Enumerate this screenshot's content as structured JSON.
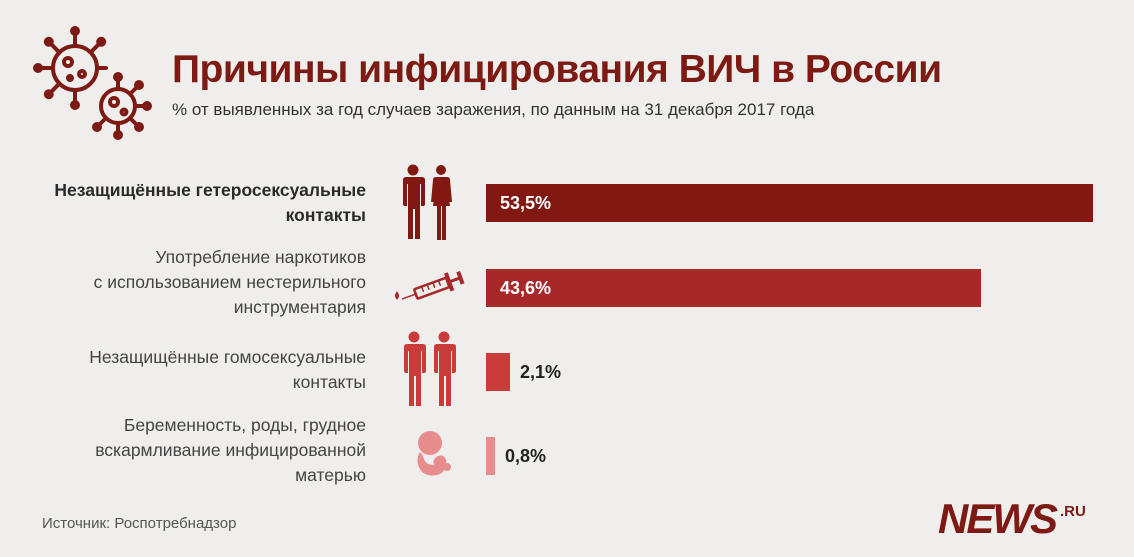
{
  "header": {
    "title": "Причины инфицирования ВИЧ в России",
    "subtitle": "% от выявленных за год случаев заражения, по данным на 31 декабря 2017 года",
    "icon": "virus-icon"
  },
  "chart_data": {
    "type": "bar",
    "orientation": "horizontal",
    "title": "Причины инфицирования ВИЧ в России",
    "subtitle": "% от выявленных за год случаев заражения, по данным на 31 декабря 2017 года",
    "categories": [
      "Незащищённые гетеросексуальные контакты",
      "Употребление наркотиков с использованием нестерильного инструментария",
      "Незащищённые гомосексуальные контакты",
      "Беременность, роды, грудное вскармливание инфицированной матерью"
    ],
    "values": [
      53.5,
      43.6,
      2.1,
      0.8
    ],
    "value_labels": [
      "53,5%",
      "43,6%",
      "2,1%",
      "0,8%"
    ],
    "unit": "%",
    "xlim": [
      0,
      53.5
    ],
    "grid": false,
    "legend": "none",
    "rows": [
      {
        "label_lines": [
          "Незащищённые гетеросексуальные",
          "контакты"
        ],
        "value_label": "53,5%",
        "color": "#821812",
        "icon": "man-woman-icon",
        "bold": true
      },
      {
        "label_lines": [
          "Употребление наркотиков",
          "с использованием нестерильного",
          "инструментария"
        ],
        "value_label": "43,6%",
        "color": "#a8282a",
        "icon": "syringe-icon",
        "bold": false
      },
      {
        "label_lines": [
          "Незащищённые гомосексуальные",
          "контакты"
        ],
        "value_label": "2,1%",
        "color": "#c93c3a",
        "icon": "two-men-icon",
        "bold": false
      },
      {
        "label_lines": [
          "Беременность, роды, грудное",
          "вскармливание инфицированной",
          "матерью"
        ],
        "value_label": "0,8%",
        "color": "#e88d8d",
        "icon": "fetus-icon",
        "bold": false
      }
    ]
  },
  "footer": {
    "source": "Источник: Роспотребнадзор",
    "logo_main": "NEWS",
    "logo_suffix": ".RU"
  }
}
